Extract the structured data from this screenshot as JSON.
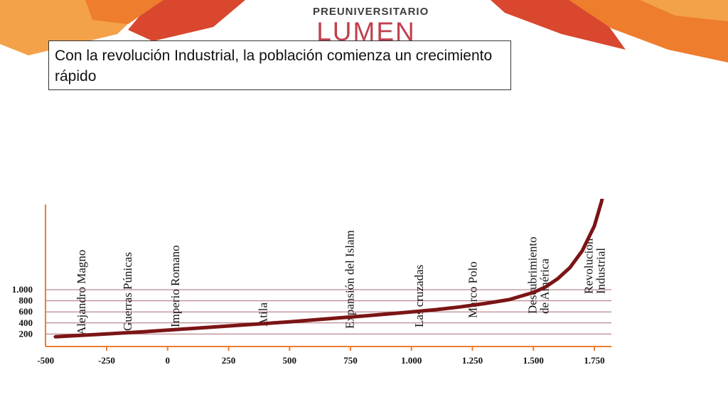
{
  "header": {
    "logo_top": "PREUNIVERSITARIO",
    "logo_main": "LUMEN",
    "colors": {
      "orange": "#ee7d2e",
      "orange_light": "#f3a24a",
      "red": "#d8472e",
      "logo_red": "#c0404e"
    }
  },
  "title": "Con la revolución Industrial, la población comienza un crecimiento rápido",
  "chart_data": {
    "type": "line",
    "title": "Con la revolución Industrial, la población comienza un crecimiento rápido",
    "xlabel": "",
    "ylabel": "",
    "x_ticks": [
      "-500",
      "-250",
      "0",
      "250",
      "500",
      "750",
      "1.000",
      "1.250",
      "1.500",
      "1.750"
    ],
    "x_tick_values": [
      -500,
      -250,
      0,
      250,
      500,
      750,
      1000,
      1250,
      1500,
      1750
    ],
    "y_ticks": [
      "200",
      "400",
      "600",
      "800",
      "1.000"
    ],
    "y_tick_values": [
      200,
      400,
      600,
      800,
      1000
    ],
    "xlim": [
      -500,
      1820
    ],
    "ylim": [
      0,
      3000
    ],
    "grid": true,
    "series": [
      {
        "color": "#7b1416",
        "x": [
          -460,
          -400,
          -300,
          -200,
          -100,
          0,
          100,
          200,
          300,
          400,
          500,
          600,
          700,
          800,
          900,
          1000,
          1100,
          1200,
          1300,
          1400,
          1500,
          1550,
          1600,
          1650,
          1700,
          1750,
          1780,
          1800,
          1815,
          1825
        ],
        "y": [
          150,
          165,
          190,
          215,
          240,
          270,
          300,
          330,
          360,
          390,
          420,
          455,
          490,
          525,
          560,
          600,
          640,
          690,
          750,
          820,
          950,
          1050,
          1200,
          1400,
          1700,
          2150,
          2600,
          3100,
          3700,
          4300
        ]
      }
    ],
    "events": [
      {
        "label": "Alejandro Magno",
        "year": -355
      },
      {
        "label": "Guerras Púnicas",
        "year": -165
      },
      {
        "label": "Imperio Romano",
        "year": 30
      },
      {
        "label": "Atila",
        "year": 390
      },
      {
        "label": "Expansión del Islam",
        "year": 745
      },
      {
        "label": "Las cruzadas",
        "year": 1030
      },
      {
        "label": "Marco Polo",
        "year": 1250
      },
      {
        "label": "Descubrimiento de América",
        "lines": [
          "Descubrimiento",
          "de América"
        ],
        "year": 1520
      },
      {
        "label": "Revolución Industrial",
        "lines": [
          "Revolución",
          "Industrial"
        ],
        "year": 1750
      }
    ]
  }
}
